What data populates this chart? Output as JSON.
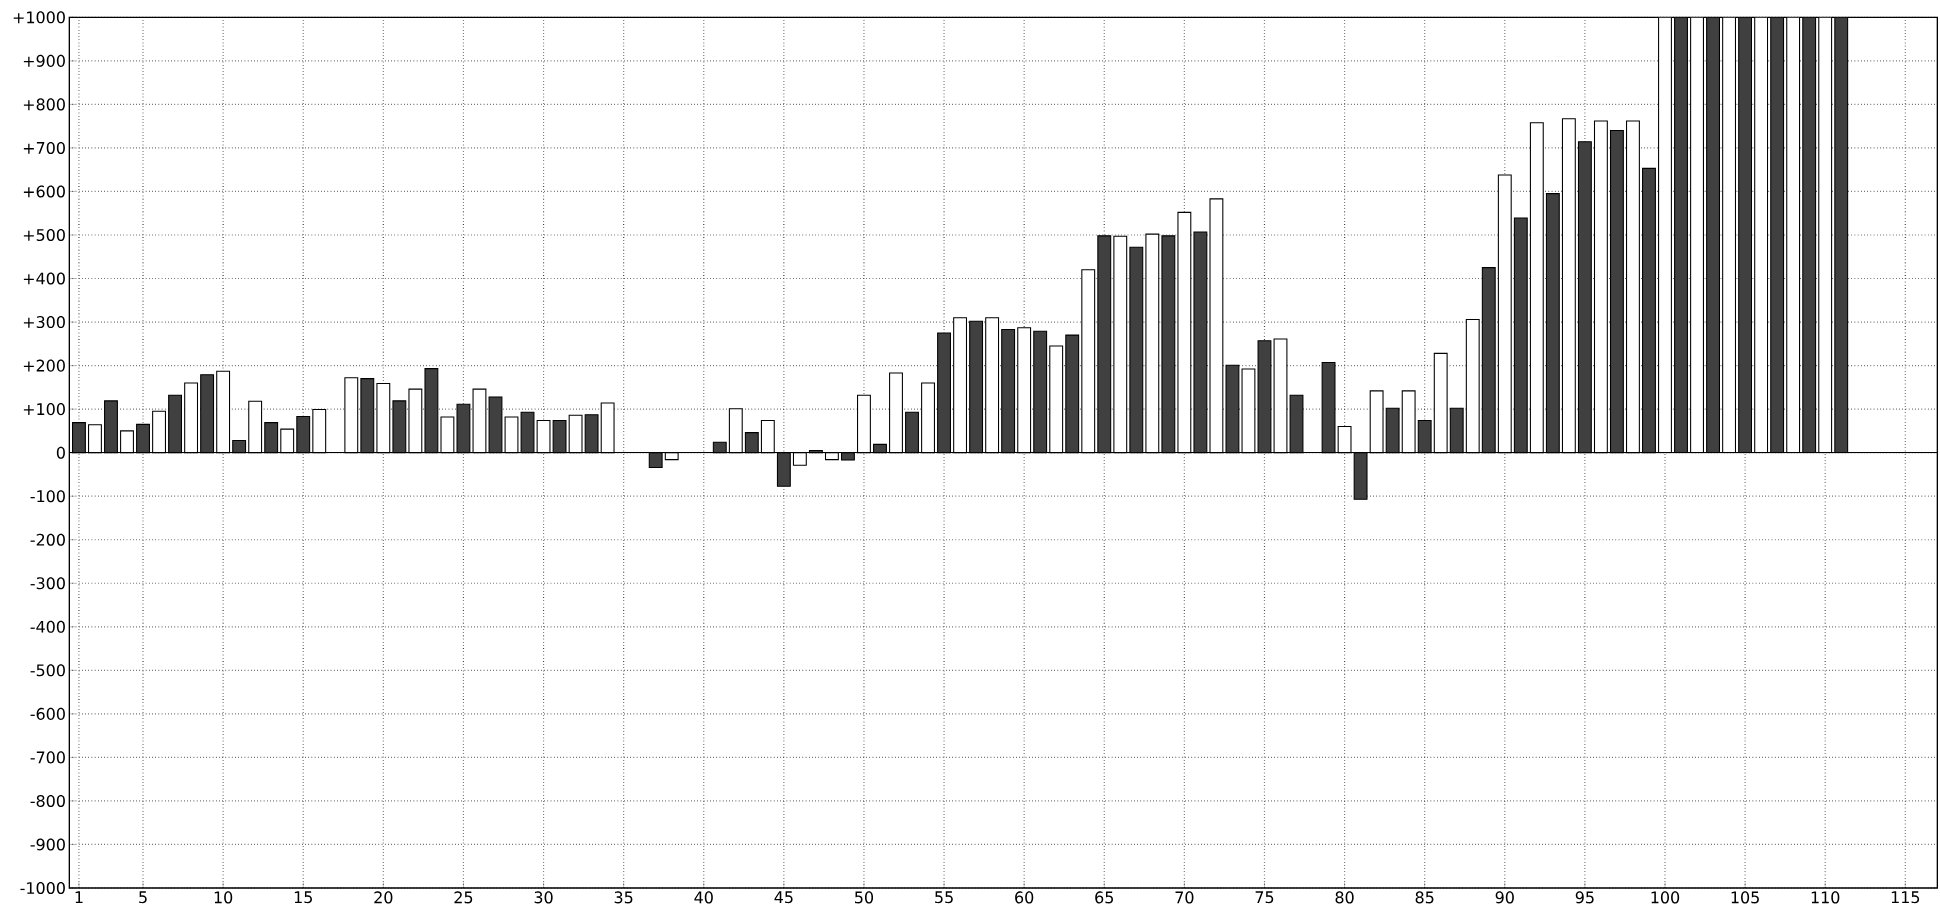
{
  "chart_data": {
    "type": "bar",
    "x": [
      1,
      2,
      3,
      4,
      5,
      6,
      7,
      8,
      9,
      10,
      11,
      12,
      13,
      14,
      15,
      16,
      17,
      18,
      19,
      20,
      21,
      22,
      23,
      24,
      25,
      26,
      27,
      28,
      29,
      30,
      31,
      32,
      33,
      34,
      35,
      36,
      37,
      38,
      39,
      40,
      41,
      42,
      43,
      44,
      45,
      46,
      47,
      48,
      49,
      50,
      51,
      52,
      53,
      54,
      55,
      56,
      57,
      58,
      59,
      60,
      61,
      62,
      63,
      64,
      65,
      66,
      67,
      68,
      69,
      70,
      71,
      72,
      73,
      74,
      75,
      76,
      77,
      78,
      79,
      80,
      81,
      82,
      83,
      84,
      85,
      86,
      87,
      88,
      89,
      90,
      91,
      92,
      93,
      94,
      95,
      96,
      97,
      98,
      99,
      100,
      101,
      102,
      103,
      104,
      105,
      106,
      107,
      108,
      109,
      110,
      111
    ],
    "values": [
      69,
      64,
      119,
      50,
      65,
      95,
      132,
      160,
      179,
      187,
      28,
      118,
      69,
      54,
      83,
      99,
      null,
      172,
      170,
      159,
      119,
      146,
      193,
      82,
      111,
      146,
      128,
      82,
      93,
      74,
      74,
      86,
      87,
      114,
      null,
      null,
      -34,
      -16,
      null,
      null,
      24,
      101,
      46,
      74,
      -77,
      -29,
      5,
      -16,
      -17,
      132,
      19,
      183,
      93,
      160,
      275,
      310,
      302,
      310,
      283,
      287,
      279,
      245,
      270,
      420,
      498,
      497,
      472,
      502,
      498,
      552,
      507,
      583,
      201,
      192,
      257,
      261,
      132,
      null,
      207,
      60,
      -107,
      142,
      102,
      142,
      74,
      228,
      102,
      306,
      425,
      638,
      539,
      758,
      595,
      767,
      714,
      762,
      740,
      762,
      653,
      1000,
      1000,
      1000,
      1000,
      1000,
      1000,
      1000,
      1000,
      1000,
      1000,
      1000,
      1000
    ],
    "colors": [
      "#404040",
      "#ffffff",
      "#404040",
      "#ffffff",
      "#404040",
      "#ffffff",
      "#404040",
      "#ffffff",
      "#404040",
      "#ffffff",
      "#404040",
      "#ffffff",
      "#404040",
      "#ffffff",
      "#404040",
      "#ffffff",
      "#404040",
      "#ffffff",
      "#404040",
      "#ffffff",
      "#404040",
      "#ffffff",
      "#404040",
      "#ffffff",
      "#404040",
      "#ffffff",
      "#404040",
      "#ffffff",
      "#404040",
      "#ffffff",
      "#404040",
      "#ffffff",
      "#404040",
      "#ffffff",
      "#404040",
      "#ffffff",
      "#404040",
      "#ffffff",
      "#404040",
      "#ffffff",
      "#404040",
      "#ffffff",
      "#404040",
      "#ffffff",
      "#404040",
      "#ffffff",
      "#404040",
      "#ffffff",
      "#404040",
      "#ffffff",
      "#404040",
      "#ffffff",
      "#404040",
      "#ffffff",
      "#404040",
      "#ffffff",
      "#404040",
      "#ffffff",
      "#404040",
      "#ffffff",
      "#404040",
      "#ffffff",
      "#404040",
      "#ffffff",
      "#404040",
      "#ffffff",
      "#404040",
      "#ffffff",
      "#404040",
      "#ffffff",
      "#404040",
      "#ffffff",
      "#404040",
      "#ffffff",
      "#404040",
      "#ffffff",
      "#404040",
      "#ffffff",
      "#404040",
      "#ffffff",
      "#404040",
      "#ffffff",
      "#404040",
      "#ffffff",
      "#404040",
      "#ffffff",
      "#404040",
      "#ffffff",
      "#404040",
      "#ffffff",
      "#404040",
      "#ffffff",
      "#404040",
      "#ffffff",
      "#404040",
      "#ffffff",
      "#404040",
      "#ffffff",
      "#404040",
      "#ffffff",
      "#404040",
      "#ffffff",
      "#404040",
      "#ffffff",
      "#404040",
      "#ffffff",
      "#404040",
      "#ffffff",
      "#404040",
      "#ffffff",
      "#404040"
    ],
    "xlim": [
      0.4,
      117
    ],
    "ylim": [
      -1000,
      1000
    ],
    "xticks": [
      1,
      5,
      10,
      15,
      20,
      25,
      30,
      35,
      40,
      45,
      50,
      55,
      60,
      65,
      70,
      75,
      80,
      85,
      90,
      95,
      100,
      105,
      110,
      115
    ],
    "yticks": [
      {
        "value": -1000,
        "label": "-1000"
      },
      {
        "value": -900,
        "label": "-900"
      },
      {
        "value": -800,
        "label": "-800"
      },
      {
        "value": -700,
        "label": "-700"
      },
      {
        "value": -600,
        "label": "-600"
      },
      {
        "value": -500,
        "label": "-500"
      },
      {
        "value": -400,
        "label": "-400"
      },
      {
        "value": -300,
        "label": "-300"
      },
      {
        "value": -200,
        "label": "-200"
      },
      {
        "value": -100,
        "label": "-100"
      },
      0,
      {
        "value": 100,
        "label": "+100"
      },
      {
        "value": 200,
        "label": "+200"
      },
      {
        "value": 300,
        "label": "+300"
      },
      {
        "value": 400,
        "label": "+400"
      },
      {
        "value": 500,
        "label": "+500"
      },
      {
        "value": 600,
        "label": "+600"
      },
      {
        "value": 700,
        "label": "+700"
      },
      {
        "value": 800,
        "label": "+800"
      },
      {
        "value": 900,
        "label": "+900"
      },
      {
        "value": 1000,
        "label": "+1000"
      }
    ],
    "grid": true
  }
}
